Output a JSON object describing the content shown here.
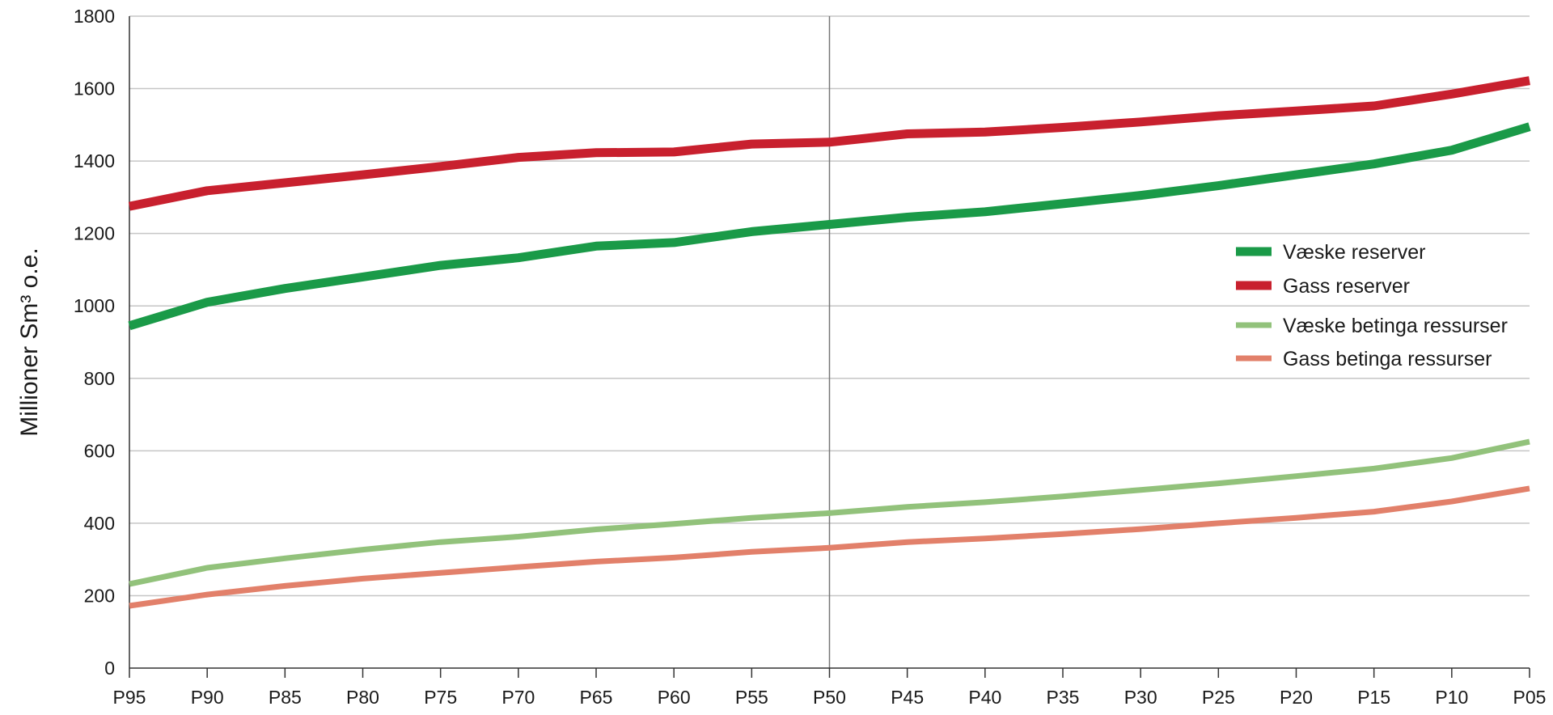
{
  "chart_data": {
    "type": "line",
    "title": "",
    "xlabel": "",
    "ylabel": "Millioner  Sm³ o.e.",
    "ylim": [
      0,
      1800
    ],
    "yticks": [
      0,
      200,
      400,
      600,
      800,
      1000,
      1200,
      1400,
      1600,
      1800
    ],
    "grid": true,
    "legend_position": "right",
    "reference_line": "P50",
    "categories": [
      "P95",
      "P90",
      "P85",
      "P80",
      "P75",
      "P70",
      "P65",
      "P60",
      "P55",
      "P50",
      "P45",
      "P40",
      "P35",
      "P30",
      "P25",
      "P20",
      "P15",
      "P10",
      "P05"
    ],
    "series": [
      {
        "name": "Væske reserver",
        "color": "#1a9a48",
        "values": [
          945,
          1010,
          1048,
          1080,
          1112,
          1133,
          1165,
          1175,
          1205,
          1225,
          1245,
          1260,
          1282,
          1305,
          1332,
          1362,
          1392,
          1430,
          1495
        ]
      },
      {
        "name": "Gass reserver",
        "color": "#c8202e",
        "values": [
          1275,
          1318,
          1340,
          1362,
          1385,
          1410,
          1423,
          1425,
          1447,
          1452,
          1475,
          1480,
          1493,
          1508,
          1525,
          1538,
          1552,
          1585,
          1622
        ]
      },
      {
        "name": "Væske betinga ressurser",
        "color": "#92c27b",
        "values": [
          232,
          277,
          303,
          327,
          348,
          363,
          383,
          398,
          415,
          428,
          445,
          458,
          474,
          492,
          510,
          530,
          551,
          580,
          625
        ]
      },
      {
        "name": "Gass betinga ressurser",
        "color": "#e2806a",
        "values": [
          172,
          203,
          227,
          247,
          263,
          279,
          294,
          305,
          321,
          332,
          348,
          358,
          370,
          384,
          400,
          415,
          432,
          460,
          496
        ]
      }
    ]
  }
}
